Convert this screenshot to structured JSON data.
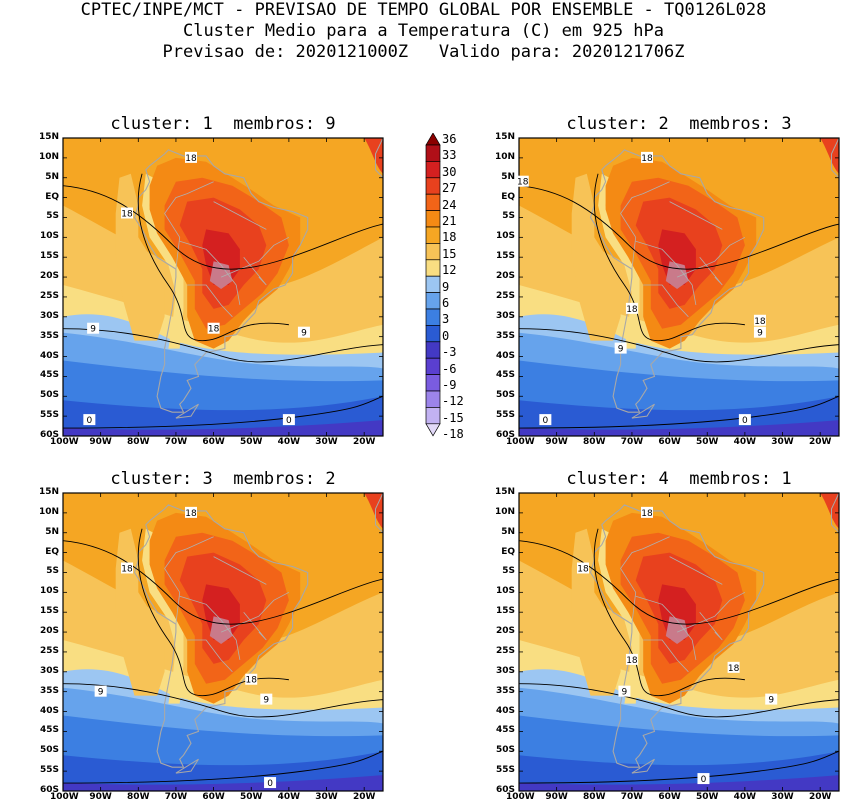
{
  "header": {
    "line1": "CPTEC/INPE/MCT - PREVISAO DE TEMPO GLOBAL POR ENSEMBLE - TQ0126L028",
    "line2": "Cluster Medio para a Temperatura (C) em 925 hPa",
    "line3": "Previsao de: 2020121000Z   Valido para: 2020121706Z"
  },
  "panels": [
    {
      "title": "cluster: 1  membros: 9"
    },
    {
      "title": "cluster: 2  membros: 3"
    },
    {
      "title": "cluster: 3  membros: 2"
    },
    {
      "title": "cluster: 4  membros: 1"
    }
  ],
  "axes": {
    "lat_labels": [
      "15N",
      "10N",
      "5N",
      "EQ",
      "5S",
      "10S",
      "15S",
      "20S",
      "25S",
      "30S",
      "35S",
      "40S",
      "45S",
      "50S",
      "55S",
      "60S"
    ],
    "lon_labels": [
      "100W",
      "90W",
      "80W",
      "70W",
      "60W",
      "50W",
      "40W",
      "30W",
      "20W"
    ]
  },
  "colorbar": {
    "levels": [
      "36",
      "33",
      "30",
      "27",
      "24",
      "21",
      "18",
      "15",
      "12",
      "9",
      "6",
      "3",
      "0",
      "-3",
      "-6",
      "-9",
      "-12",
      "-15",
      "-18"
    ],
    "colors": [
      "#8b0000",
      "#b00f18",
      "#d42020",
      "#e8411e",
      "#f26418",
      "#f48a14",
      "#f5a623",
      "#f7c357",
      "#f9de82",
      "#9cc6f2",
      "#66a3ec",
      "#3c7fe2",
      "#2a5bd3",
      "#4339c4",
      "#5a3fd0",
      "#7a5ce0",
      "#9c84ea",
      "#c2b2f2",
      "#e2d9f8"
    ]
  },
  "contour_labels": {
    "p1": [
      "18",
      "18",
      "18",
      "9",
      "9",
      "0",
      "0"
    ],
    "p2": [
      "18",
      "18",
      "18",
      "18",
      "9",
      "9",
      "0",
      "0"
    ],
    "p3": [
      "18",
      "18",
      "18",
      "9",
      "9",
      "0"
    ],
    "p4": [
      "18",
      "18",
      "18",
      "18",
      "9",
      "9",
      "0"
    ]
  }
}
